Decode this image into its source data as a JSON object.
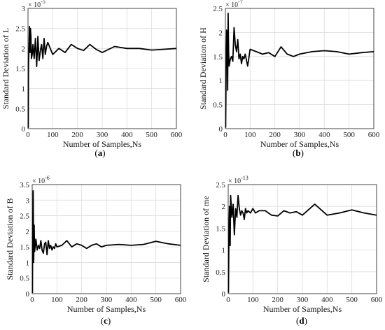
{
  "chart_data": [
    {
      "type": "line",
      "panel": "a",
      "caption_open": "(",
      "caption_letter": "a",
      "caption_close": ")",
      "xlabel": "Number of Samples,Ns",
      "ylabel": "Standard Deviation of L",
      "exponent_base": "× 10",
      "exponent_power": "-5",
      "xlim": [
        0,
        600
      ],
      "ylim": [
        0,
        3
      ],
      "xticks": [
        0,
        100,
        200,
        300,
        400,
        500,
        600
      ],
      "yticks": [
        0,
        0.5,
        1,
        1.5,
        2,
        2.5,
        3
      ],
      "ytick_labels": [
        "0",
        "0.5",
        "1",
        "1.5",
        "2",
        "2.5",
        "3"
      ],
      "grid": true,
      "x": [
        1,
        2,
        4,
        6,
        8,
        10,
        12,
        14,
        17,
        20,
        25,
        30,
        35,
        40,
        45,
        50,
        55,
        60,
        65,
        70,
        75,
        80,
        90,
        100,
        125,
        150,
        175,
        200,
        225,
        250,
        275,
        300,
        350,
        400,
        450,
        500,
        550,
        600
      ],
      "y": [
        0.02,
        1.6,
        2.0,
        2.55,
        1.9,
        2.5,
        2.3,
        1.75,
        1.85,
        2.1,
        1.75,
        2.25,
        1.55,
        2.3,
        1.7,
        1.95,
        2.1,
        1.75,
        2.25,
        1.85,
        2.05,
        2.15,
        2.0,
        1.85,
        2.0,
        1.9,
        2.1,
        2.0,
        1.95,
        2.1,
        1.98,
        1.9,
        2.05,
        2.0,
        2.0,
        1.96,
        1.98,
        2.0
      ]
    },
    {
      "type": "line",
      "panel": "b",
      "caption_open": "(",
      "caption_letter": "b",
      "caption_close": ")",
      "xlabel": "Number of Samples,Ns",
      "ylabel": "Standard Deviation of H",
      "exponent_base": "× 10",
      "exponent_power": "-7",
      "xlim": [
        0,
        600
      ],
      "ylim": [
        0,
        2.5
      ],
      "xticks": [
        0,
        100,
        200,
        300,
        400,
        500,
        600
      ],
      "yticks": [
        0,
        0.5,
        1,
        1.5,
        2,
        2.5
      ],
      "ytick_labels": [
        "0",
        "0.5",
        "1",
        "1.5",
        "2",
        "2.5"
      ],
      "grid": true,
      "x": [
        1,
        3,
        5,
        7,
        9,
        11,
        13,
        15,
        20,
        25,
        30,
        35,
        40,
        45,
        50,
        55,
        60,
        65,
        70,
        75,
        80,
        90,
        100,
        125,
        150,
        175,
        200,
        225,
        250,
        275,
        300,
        350,
        400,
        450,
        500,
        550,
        600
      ],
      "y": [
        0.02,
        1.35,
        2.05,
        1.8,
        0.8,
        2.4,
        1.6,
        1.3,
        1.45,
        1.5,
        1.4,
        2.1,
        1.75,
        1.6,
        1.85,
        1.45,
        1.55,
        1.35,
        1.5,
        1.45,
        1.55,
        1.3,
        1.65,
        1.6,
        1.55,
        1.58,
        1.5,
        1.7,
        1.55,
        1.5,
        1.55,
        1.6,
        1.62,
        1.6,
        1.55,
        1.58,
        1.6
      ]
    },
    {
      "type": "line",
      "panel": "c",
      "caption_open": "(",
      "caption_letter": "c",
      "caption_close": ")",
      "xlabel": "Number of Samples,Ns",
      "ylabel": "Standard Deviation of B",
      "exponent_base": "× 10",
      "exponent_power": "-6",
      "xlim": [
        0,
        600
      ],
      "ylim": [
        0,
        3.5
      ],
      "xticks": [
        0,
        100,
        200,
        300,
        400,
        500,
        600
      ],
      "yticks": [
        0,
        0.5,
        1,
        1.5,
        2,
        2.5,
        3,
        3.5
      ],
      "ytick_labels": [
        "0",
        "0.5",
        "1",
        "1.5",
        "2",
        "2.5",
        "3",
        "3.5"
      ],
      "grid": true,
      "x": [
        1,
        2,
        4,
        6,
        8,
        10,
        15,
        20,
        25,
        30,
        35,
        40,
        45,
        50,
        55,
        60,
        65,
        70,
        75,
        80,
        85,
        90,
        95,
        100,
        120,
        140,
        160,
        180,
        200,
        220,
        240,
        260,
        280,
        300,
        350,
        400,
        450,
        500,
        550,
        600
      ],
      "y": [
        0.02,
        2.0,
        3.3,
        1.0,
        2.2,
        1.35,
        1.75,
        1.4,
        1.55,
        1.45,
        1.7,
        1.4,
        1.3,
        1.6,
        1.65,
        1.25,
        1.7,
        1.45,
        1.55,
        1.4,
        1.5,
        1.45,
        1.6,
        1.5,
        1.55,
        1.7,
        1.5,
        1.6,
        1.55,
        1.45,
        1.55,
        1.6,
        1.5,
        1.55,
        1.58,
        1.55,
        1.58,
        1.68,
        1.6,
        1.55
      ]
    },
    {
      "type": "line",
      "panel": "d",
      "caption_open": "(",
      "caption_letter": "d",
      "caption_close": ")",
      "xlabel": "Number of Samples,Ns",
      "ylabel": "Standard Deviation of me",
      "exponent_base": "× 10",
      "exponent_power": "-13",
      "xlim": [
        0,
        600
      ],
      "ylim": [
        0,
        2.5
      ],
      "xticks": [
        0,
        100,
        200,
        300,
        400,
        500,
        600
      ],
      "yticks": [
        0,
        0.5,
        1,
        1.5,
        2,
        2.5
      ],
      "ytick_labels": [
        "0",
        "0.5",
        "1",
        "1.5",
        "2",
        "2.5"
      ],
      "grid": true,
      "x": [
        1,
        3,
        5,
        8,
        10,
        15,
        20,
        25,
        30,
        35,
        40,
        45,
        50,
        55,
        60,
        65,
        70,
        75,
        80,
        90,
        100,
        110,
        125,
        150,
        175,
        200,
        225,
        250,
        275,
        300,
        350,
        400,
        450,
        500,
        550,
        600
      ],
      "y": [
        0.02,
        1.5,
        2.0,
        1.1,
        2.25,
        1.75,
        2.05,
        1.35,
        1.95,
        1.75,
        2.25,
        1.95,
        1.8,
        1.9,
        1.85,
        1.7,
        1.95,
        1.85,
        1.9,
        1.85,
        1.95,
        1.85,
        1.9,
        1.9,
        1.8,
        1.78,
        1.9,
        1.85,
        1.88,
        1.8,
        2.05,
        1.8,
        1.85,
        1.92,
        1.85,
        1.8
      ]
    }
  ]
}
